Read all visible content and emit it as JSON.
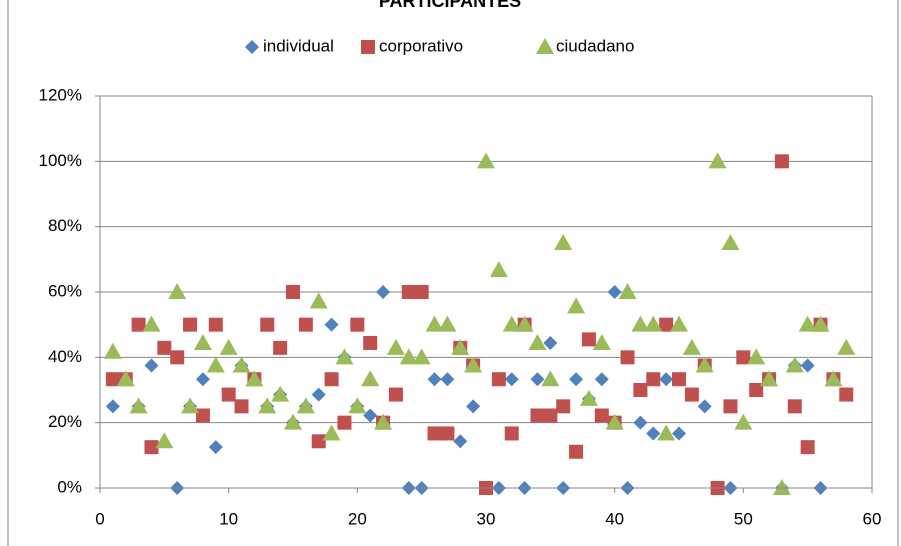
{
  "chart_data": {
    "type": "scatter",
    "title": "PARTICIPANTES",
    "xlim": [
      0,
      60
    ],
    "xticks": [
      0,
      10,
      20,
      30,
      40,
      50,
      60
    ],
    "ylim": [
      0,
      120
    ],
    "yticks": [
      {
        "value": 0,
        "label": "0%"
      },
      {
        "value": 20,
        "label": "20%"
      },
      {
        "value": 40,
        "label": "40%"
      },
      {
        "value": 60,
        "label": "60%"
      },
      {
        "value": 80,
        "label": "80%"
      },
      {
        "value": 100,
        "label": "100%"
      },
      {
        "value": 120,
        "label": "120%"
      }
    ],
    "grid": true,
    "legend": "top",
    "series": [
      {
        "name": "individual",
        "color": "#4f81bd",
        "marker": "diamond",
        "x": [
          1,
          3,
          4,
          6,
          7,
          8,
          9,
          11,
          13,
          14,
          15,
          16,
          17,
          18,
          19,
          20,
          21,
          22,
          24,
          25,
          26,
          27,
          28,
          29,
          31,
          32,
          33,
          34,
          35,
          36,
          37,
          38,
          39,
          40,
          41,
          42,
          43,
          44,
          45,
          47,
          49,
          53,
          54,
          55,
          56
        ],
        "values": [
          25,
          25,
          37.5,
          0,
          25,
          33.3,
          12.5,
          37.5,
          25,
          28.6,
          20,
          25,
          28.6,
          50,
          40,
          25,
          22.2,
          60,
          0,
          0,
          33.3,
          33.3,
          14.3,
          25,
          0,
          33.3,
          0,
          33.3,
          44.4,
          0,
          33.3,
          27.3,
          33.3,
          60,
          0,
          20,
          16.7,
          33.3,
          16.7,
          25,
          0,
          0,
          37.5,
          37.5,
          0
        ]
      },
      {
        "name": "corporativo",
        "color": "#c0504d",
        "marker": "square",
        "x": [
          1,
          2,
          3,
          4,
          5,
          6,
          7,
          8,
          9,
          10,
          11,
          12,
          13,
          14,
          15,
          16,
          17,
          18,
          19,
          20,
          21,
          22,
          23,
          24,
          25,
          26,
          27,
          28,
          29,
          30,
          31,
          32,
          33,
          34,
          35,
          36,
          37,
          38,
          39,
          40,
          41,
          42,
          43,
          44,
          45,
          46,
          47,
          48,
          49,
          50,
          51,
          52,
          53,
          54,
          55,
          56,
          57,
          58
        ],
        "values": [
          33.3,
          33.3,
          50,
          12.5,
          42.9,
          40,
          50,
          22.2,
          50,
          28.6,
          25,
          33.3,
          50,
          42.9,
          60,
          50,
          14.3,
          33.3,
          20,
          50,
          44.4,
          20,
          28.6,
          60,
          60,
          16.7,
          16.7,
          42.9,
          37.5,
          0,
          33.3,
          16.7,
          50,
          22.2,
          22.2,
          25,
          11.1,
          45.5,
          22.2,
          20,
          40,
          30,
          33.3,
          50,
          33.3,
          28.6,
          37.5,
          0,
          25,
          40,
          30,
          33.3,
          100,
          25,
          12.5,
          50,
          33.3,
          28.6
        ]
      },
      {
        "name": "ciudadano",
        "color": "#9bbb59",
        "marker": "triangle",
        "x": [
          1,
          2,
          3,
          4,
          5,
          6,
          7,
          8,
          9,
          10,
          11,
          12,
          13,
          14,
          15,
          16,
          17,
          18,
          19,
          20,
          21,
          22,
          23,
          24,
          25,
          26,
          27,
          28,
          29,
          30,
          31,
          32,
          33,
          34,
          35,
          36,
          37,
          38,
          39,
          40,
          41,
          42,
          43,
          44,
          45,
          46,
          47,
          48,
          49,
          50,
          51,
          52,
          53,
          54,
          55,
          56,
          57,
          58
        ],
        "values": [
          41.7,
          33.3,
          25,
          50,
          14.3,
          60,
          25,
          44.4,
          37.5,
          42.9,
          37.5,
          33.3,
          25,
          28.6,
          20,
          25,
          57.1,
          16.7,
          40,
          25,
          33.3,
          20,
          42.9,
          40,
          40,
          50,
          50,
          42.9,
          37.5,
          100,
          66.7,
          50,
          50,
          44.4,
          33.3,
          75,
          55.6,
          27.3,
          44.4,
          20,
          60,
          50,
          50,
          16.7,
          50,
          42.9,
          37.5,
          100,
          75,
          20,
          40,
          33.3,
          0,
          37.5,
          50,
          50,
          33.3,
          42.9
        ]
      }
    ]
  }
}
